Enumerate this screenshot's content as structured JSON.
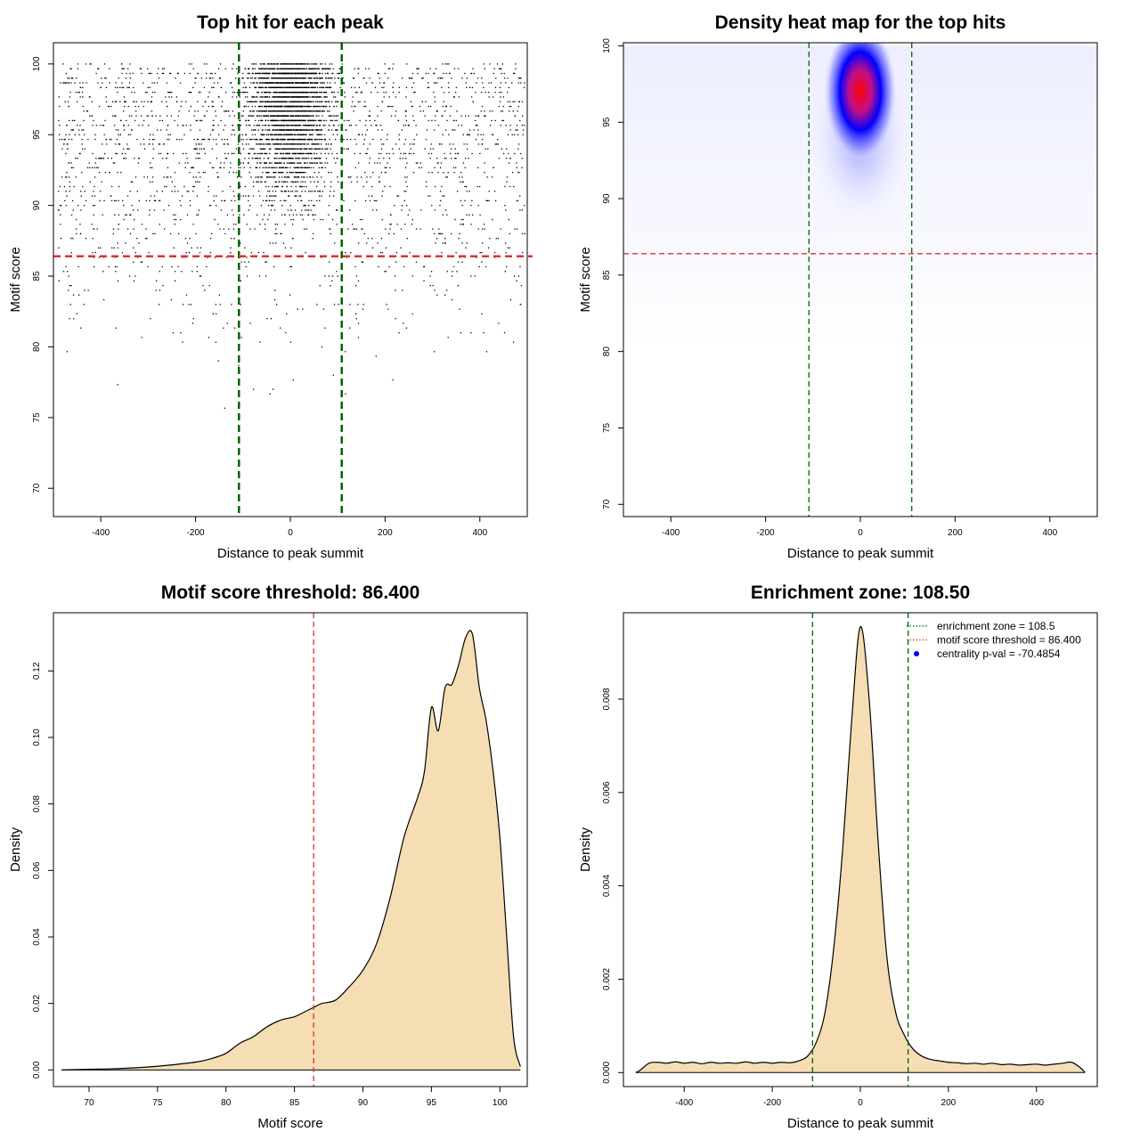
{
  "chart_data": [
    {
      "type": "scatter",
      "title": "Top hit for each peak",
      "xlabel": "Distance to peak summit",
      "ylabel": "Motif score",
      "xlim": [
        -500,
        500
      ],
      "ylim": [
        68,
        101.5
      ],
      "xticks": [
        -400,
        -200,
        0,
        200,
        400
      ],
      "yticks": [
        70,
        75,
        80,
        85,
        90,
        95,
        100
      ],
      "vlines": [
        -108.5,
        108.5
      ],
      "vline_color": "#006400",
      "hline": 86.4,
      "hline_color": "#e03030",
      "point_color": "#000000",
      "points_note": "dense points concentrated around distance 0 and scores 90-100; sparse points across the full x range"
    },
    {
      "type": "heatmap",
      "title": "Density heat map for the top hits",
      "xlabel": "Distance to peak summit",
      "ylabel": "Motif score",
      "xlim": [
        -500,
        500
      ],
      "ylim": [
        69.2,
        100.2
      ],
      "xticks": [
        -400,
        -200,
        0,
        200,
        400
      ],
      "yticks": [
        70,
        75,
        80,
        85,
        90,
        95,
        100
      ],
      "vlines": [
        -108.5,
        108.5
      ],
      "vline_color": "#006400",
      "hline": 86.4,
      "hline_color": "#e03030",
      "peak": {
        "x": 0,
        "y": 97.5
      },
      "colors": {
        "low": "#ffffff",
        "mid": "#0000ff",
        "high": "#ff0000"
      }
    },
    {
      "type": "area",
      "title": "Motif score threshold: 86.400",
      "xlabel": "Motif score",
      "ylabel": "Density",
      "xlim": [
        67.4,
        102
      ],
      "ylim": [
        -0.005,
        0.1375
      ],
      "xticks": [
        70,
        75,
        80,
        85,
        90,
        95,
        100
      ],
      "yticks": [
        0.0,
        0.02,
        0.04,
        0.06,
        0.08,
        0.1,
        0.12
      ],
      "ytick_labels": [
        "0.00",
        "0.02",
        "0.04",
        "0.06",
        "0.08",
        "0.10",
        "0.12"
      ],
      "vline": 86.4,
      "vline_color": "#e03030",
      "fill": "#f5deb3",
      "x": [
        68,
        70,
        72,
        74,
        76,
        78,
        79,
        80,
        81,
        82,
        83,
        84,
        85,
        86,
        86.5,
        87,
        88,
        89,
        90,
        91,
        92,
        93,
        94,
        94.5,
        95,
        95.5,
        96,
        96.5,
        97,
        97.5,
        98,
        98.5,
        99,
        99.5,
        100,
        100.5,
        101,
        101.5
      ],
      "y": [
        0.0,
        0.0002,
        0.0004,
        0.0008,
        0.0015,
        0.0025,
        0.0035,
        0.005,
        0.008,
        0.01,
        0.013,
        0.015,
        0.016,
        0.018,
        0.019,
        0.02,
        0.021,
        0.025,
        0.03,
        0.038,
        0.052,
        0.07,
        0.082,
        0.09,
        0.109,
        0.102,
        0.115,
        0.116,
        0.122,
        0.13,
        0.131,
        0.115,
        0.105,
        0.09,
        0.07,
        0.04,
        0.01,
        0.001
      ]
    },
    {
      "type": "area",
      "title": "Enrichment zone: 108.50",
      "xlabel": "Distance to peak summit",
      "ylabel": "Density",
      "xlim": [
        -538,
        538
      ],
      "ylim": [
        -0.0003,
        0.00985
      ],
      "xticks": [
        -400,
        -200,
        0,
        200,
        400
      ],
      "yticks": [
        0.0,
        0.002,
        0.004,
        0.006,
        0.008
      ],
      "ytick_labels": [
        "0.000",
        "0.002",
        "0.004",
        "0.006",
        "0.008"
      ],
      "vlines": [
        -108.5,
        108.5
      ],
      "vline_color": "#006400",
      "fill": "#f5deb3",
      "x": [
        -510,
        -500,
        -480,
        -460,
        -440,
        -420,
        -400,
        -380,
        -360,
        -340,
        -320,
        -300,
        -280,
        -260,
        -240,
        -220,
        -200,
        -180,
        -160,
        -140,
        -120,
        -100,
        -80,
        -60,
        -40,
        -20,
        0,
        20,
        40,
        60,
        80,
        100,
        120,
        140,
        160,
        180,
        200,
        220,
        240,
        260,
        280,
        300,
        320,
        340,
        360,
        380,
        400,
        420,
        440,
        460,
        480,
        500,
        510
      ],
      "y": [
        0.0,
        5e-05,
        0.0002,
        0.00022,
        0.0002,
        0.00023,
        0.0002,
        0.00022,
        0.00019,
        0.00022,
        0.0002,
        0.00021,
        0.0002,
        0.00023,
        0.0002,
        0.00022,
        0.0002,
        0.00022,
        0.00021,
        0.00025,
        0.00035,
        0.00065,
        0.0013,
        0.0027,
        0.0048,
        0.0075,
        0.00955,
        0.008,
        0.005,
        0.0025,
        0.0013,
        0.0008,
        0.0005,
        0.00035,
        0.00028,
        0.00025,
        0.00022,
        0.00021,
        0.00019,
        0.0002,
        0.00018,
        0.0002,
        0.00017,
        0.00018,
        0.00016,
        0.00017,
        0.00018,
        0.00016,
        0.00018,
        0.0002,
        0.00022,
        0.0001,
        0.0
      ],
      "legend": {
        "position": "top-right",
        "items": [
          {
            "label": "enrichment zone = 108.5",
            "kind": "dotted-line",
            "color": "#006400"
          },
          {
            "label": "motif score threshold = 86.400",
            "kind": "dotted-line",
            "color": "#e03030"
          },
          {
            "label": "centrality p-val = -70.4854",
            "kind": "point",
            "color": "#0000ff"
          }
        ]
      }
    }
  ]
}
